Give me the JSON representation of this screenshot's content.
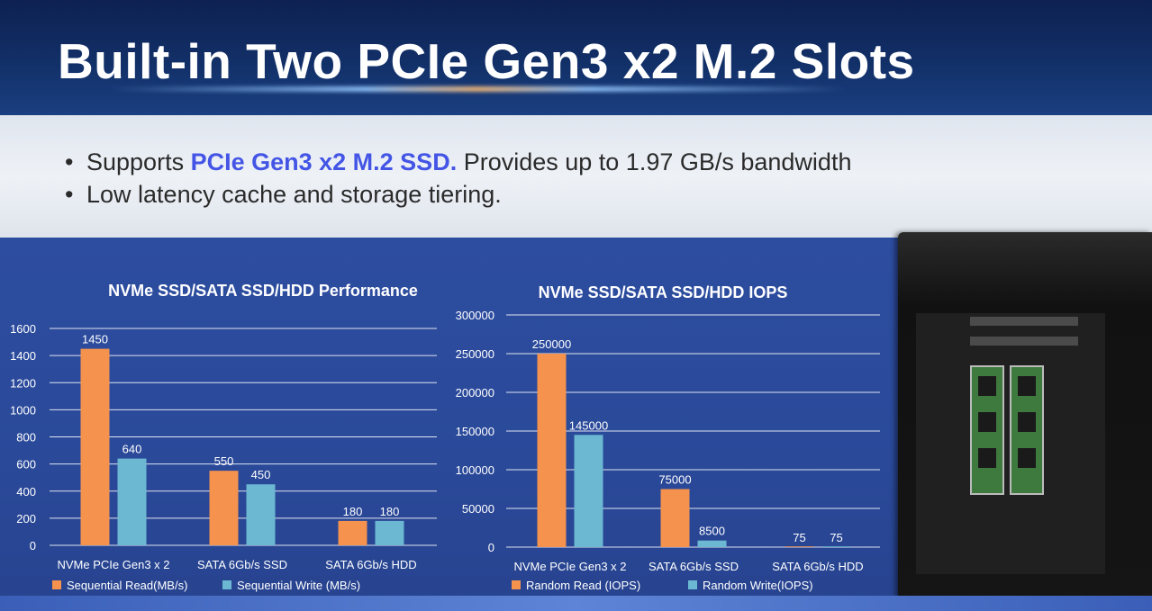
{
  "header": {
    "title": "Built-in Two PCIe Gen3 x2 M.2 Slots"
  },
  "bullets": {
    "item1_prefix": "Supports ",
    "item1_highlight": "PCIe Gen3 x2 M.2 SSD.",
    "item1_suffix": " Provides up to 1.97 GB/s bandwidth",
    "item2": "Low latency cache and storage tiering."
  },
  "colors": {
    "orange": "#f5924e",
    "blue": "#6cb8d2",
    "highlight": "#4455e6"
  },
  "chart_data": [
    {
      "type": "bar",
      "title": "NVMe SSD/SATA SSD/HDD Performance",
      "categories": [
        "NVMe PCIe Gen3 x 2",
        "SATA 6Gb/s SSD",
        "SATA 6Gb/s HDD"
      ],
      "series": [
        {
          "name": "Sequential Read(MB/s)",
          "values": [
            1450,
            550,
            180
          ],
          "color": "#f5924e"
        },
        {
          "name": "Sequential Write (MB/s)",
          "values": [
            640,
            450,
            180
          ],
          "color": "#6cb8d2"
        }
      ],
      "ylim": [
        0,
        1600
      ],
      "yticks": [
        0,
        200,
        400,
        600,
        800,
        1000,
        1200,
        1400,
        1600
      ],
      "grid": true,
      "legend": "bottom"
    },
    {
      "type": "bar",
      "title": "NVMe SSD/SATA SSD/HDD IOPS",
      "categories": [
        "NVMe PCIe Gen3 x 2",
        "SATA 6Gb/s SSD",
        "SATA 6Gb/s HDD"
      ],
      "series": [
        {
          "name": "Random Read (IOPS)",
          "values": [
            250000,
            75000,
            75
          ],
          "color": "#f5924e"
        },
        {
          "name": "Random Write(IOPS)",
          "values": [
            145000,
            8500,
            75
          ],
          "color": "#6cb8d2"
        }
      ],
      "ylim": [
        0,
        300000
      ],
      "yticks": [
        0,
        50000,
        100000,
        150000,
        200000,
        250000,
        300000
      ],
      "grid": true,
      "legend": "bottom"
    }
  ]
}
